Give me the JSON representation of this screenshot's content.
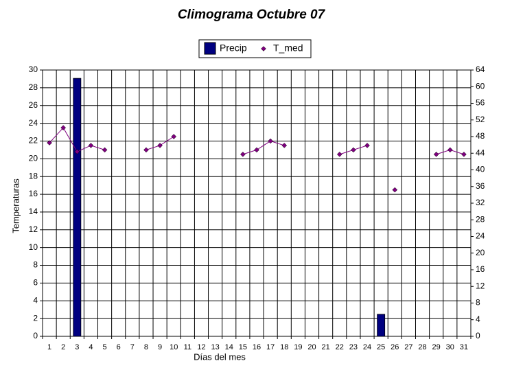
{
  "chart_data": {
    "type": "combo",
    "title": "Climograma Octubre 07",
    "xlabel": "Días del mes",
    "ylabel": "Temperaturas",
    "categories": [
      "1",
      "2",
      "3",
      "4",
      "5",
      "6",
      "7",
      "8",
      "9",
      "10",
      "11",
      "12",
      "13",
      "14",
      "15",
      "16",
      "17",
      "18",
      "19",
      "20",
      "21",
      "22",
      "23",
      "24",
      "25",
      "26",
      "27",
      "28",
      "29",
      "30",
      "31"
    ],
    "series": [
      {
        "name": "Precip",
        "type": "bar",
        "axis": "y2",
        "color": "#000080",
        "values": [
          null,
          null,
          62,
          null,
          null,
          null,
          null,
          null,
          null,
          null,
          null,
          null,
          null,
          null,
          null,
          null,
          null,
          null,
          null,
          null,
          null,
          null,
          null,
          null,
          5.3,
          null,
          null,
          null,
          null,
          null,
          null
        ]
      },
      {
        "name": "T_med",
        "type": "line",
        "color": "#800080",
        "values": [
          21.8,
          23.5,
          20.8,
          21.5,
          21.0,
          null,
          null,
          21.0,
          21.5,
          22.5,
          null,
          null,
          null,
          null,
          20.5,
          21.0,
          22.0,
          21.5,
          null,
          null,
          null,
          20.5,
          21.0,
          21.5,
          null,
          16.5,
          null,
          null,
          20.5,
          21.0,
          20.5
        ]
      }
    ],
    "ylim": [
      0,
      30
    ],
    "yticks": [
      0,
      2,
      4,
      6,
      8,
      10,
      12,
      14,
      16,
      18,
      20,
      22,
      24,
      26,
      28,
      30
    ],
    "y2lim": [
      0,
      64
    ],
    "y2ticks": [
      0,
      4,
      8,
      12,
      16,
      20,
      24,
      28,
      32,
      36,
      40,
      44,
      48,
      52,
      56,
      60,
      64
    ],
    "grid": true,
    "legend": "top"
  }
}
